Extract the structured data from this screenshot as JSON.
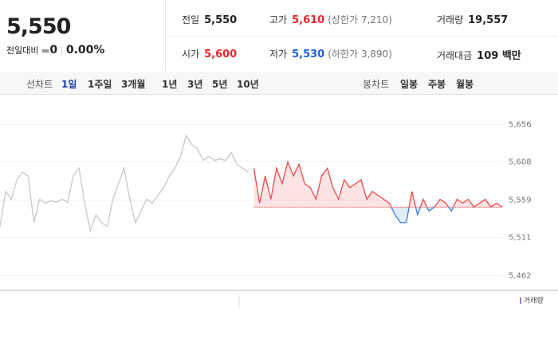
{
  "header": {
    "price": "5,550",
    "change_label": "전일대비",
    "change": "0",
    "rate": "0.00%",
    "stats": [
      {
        "label": "전일",
        "value": {
          "value": 5550,
          "label": "5,550"
        }
      },
      {
        "label": "고가",
        "value": "5,610",
        "note": "(상한가 7,210)"
      },
      {
        "label": "거래량",
        "value": "19,557"
      },
      {
        "label": "시가",
        "value": "5,600"
      },
      {
        "label": "저가",
        "value": "5,530",
        "note": "(하한가 3,890)"
      },
      {
        "label": "거래대금",
        "value": "109 백만"
      }
    ]
  },
  "toolbar": {
    "line_label": "선차트",
    "line_tabs": [
      "1일",
      "1주일",
      "3개월",
      "1년",
      "3년",
      "5년",
      "10년"
    ],
    "candle_label": "봉차트",
    "candle_tabs": [
      "일봉",
      "주봉",
      "월봉"
    ]
  },
  "chart_data": {
    "type": "line",
    "ylim": [
      5443,
      5676
    ],
    "yticks": [
      {
        "value": 5462,
        "label": "5,462"
      },
      {
        "value": 5511,
        "label": "5,511"
      },
      {
        "value": 5559,
        "label": "5,559"
      },
      {
        "value": 5608,
        "label": "5,608"
      },
      {
        "value": 5656,
        "label": "5,656"
      }
    ],
    "grid": true,
    "legend": "거래량",
    "series": [
      {
        "color": "#c8c8c8",
        "values": [
          5525,
          5570,
          5560,
          5585,
          5595,
          5590,
          5530,
          5560,
          5555,
          5558,
          5556,
          5560,
          5556,
          5590,
          5600,
          5555,
          5520,
          5540,
          5530,
          5525,
          5560,
          5580,
          5600,
          5560,
          5530,
          5545,
          5560,
          5555,
          5565,
          5575,
          5590,
          5600,
          5615,
          5642,
          5630,
          5625,
          5610,
          5615,
          5610,
          5612,
          5610,
          5620,
          5605,
          5600,
          5595,
          null,
          null,
          null,
          null,
          null,
          null,
          null,
          null,
          null,
          null,
          null,
          null,
          null,
          null,
          null,
          null,
          null,
          null,
          null,
          null,
          null,
          null,
          null,
          null,
          null,
          null,
          null,
          null,
          null,
          null,
          null,
          null,
          null,
          null,
          null,
          null,
          null,
          null,
          null,
          null,
          null,
          null,
          null,
          null,
          null
        ]
      },
      {
        "color": "#f04848",
        "down_color": "#3d7fd9",
        "values": [
          null,
          null,
          null,
          null,
          null,
          null,
          null,
          null,
          null,
          null,
          null,
          null,
          null,
          null,
          null,
          null,
          null,
          null,
          null,
          null,
          null,
          null,
          null,
          null,
          null,
          null,
          null,
          null,
          null,
          null,
          null,
          null,
          null,
          null,
          null,
          null,
          null,
          null,
          null,
          null,
          null,
          null,
          null,
          null,
          null,
          5600,
          5555,
          5590,
          5560,
          5600,
          5580,
          5608,
          5590,
          5605,
          5580,
          5575,
          5560,
          5590,
          5600,
          5575,
          5560,
          5585,
          5575,
          5580,
          5585,
          5560,
          5570,
          5565,
          5560,
          5555,
          5540,
          5530,
          5530,
          5570,
          5540,
          5560,
          5545,
          5550,
          5560,
          5555,
          5545,
          5560,
          5555,
          5560,
          5550,
          5555,
          5560,
          5550,
          5555,
          5550
        ]
      }
    ]
  }
}
